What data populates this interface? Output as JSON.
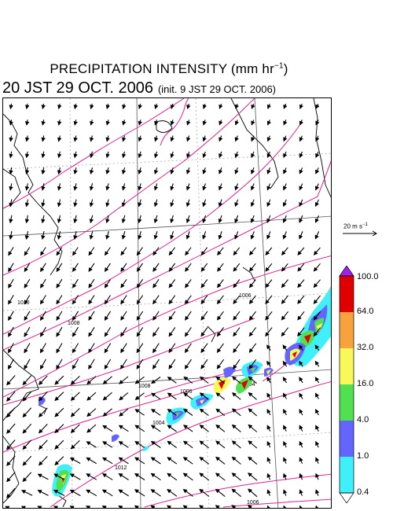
{
  "title": {
    "main": "PRECIPITATION INTENSITY (mm hr",
    "sup": "−1",
    "close": ")",
    "valid_time": "20 JST 29 OCT. 2006",
    "init_time": "(init. 9 JST 29 OCT. 2006)"
  },
  "reference_vector": {
    "label": "20 m s",
    "sup": "−1"
  },
  "colorbar": {
    "ticks": [
      "100.0",
      "64.0",
      "32.0",
      "16.0",
      "4.0",
      "1.0",
      "0.4"
    ],
    "colors": [
      "#a020f0",
      "#e00000",
      "#f7a23c",
      "#f8f85a",
      "#50e050",
      "#6464ff",
      "#40f0f8"
    ]
  },
  "isobar_labels": [
    "1010",
    "1008",
    "1006",
    "1008",
    "1006",
    "1004",
    "1004",
    "1012",
    "1006"
  ],
  "colors": {
    "isobar": "#e0208a",
    "coast": "#000000",
    "grid": "#555555",
    "wind": "#000000"
  }
}
